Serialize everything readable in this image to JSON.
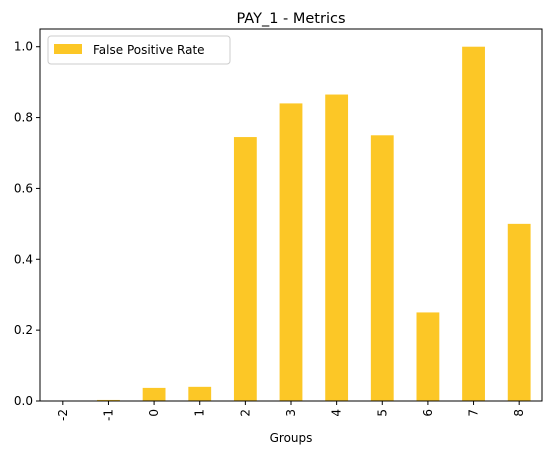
{
  "chart_data": {
    "type": "bar",
    "title": "PAY_1 - Metrics",
    "xlabel": "Groups",
    "ylabel": "",
    "categories": [
      "-2",
      "-1",
      "0",
      "1",
      "2",
      "3",
      "4",
      "5",
      "6",
      "7",
      "8"
    ],
    "series": [
      {
        "name": "False Positive Rate",
        "color": "#fcc726",
        "values": [
          0.0,
          0.003,
          0.037,
          0.04,
          0.745,
          0.84,
          0.865,
          0.75,
          0.25,
          1.0,
          0.5
        ]
      }
    ],
    "ylim": [
      0,
      1.05
    ],
    "yticks": [
      "0.0",
      "0.2",
      "0.4",
      "0.6",
      "0.8",
      "1.0"
    ],
    "grid": false,
    "legend_position": "top-left"
  }
}
